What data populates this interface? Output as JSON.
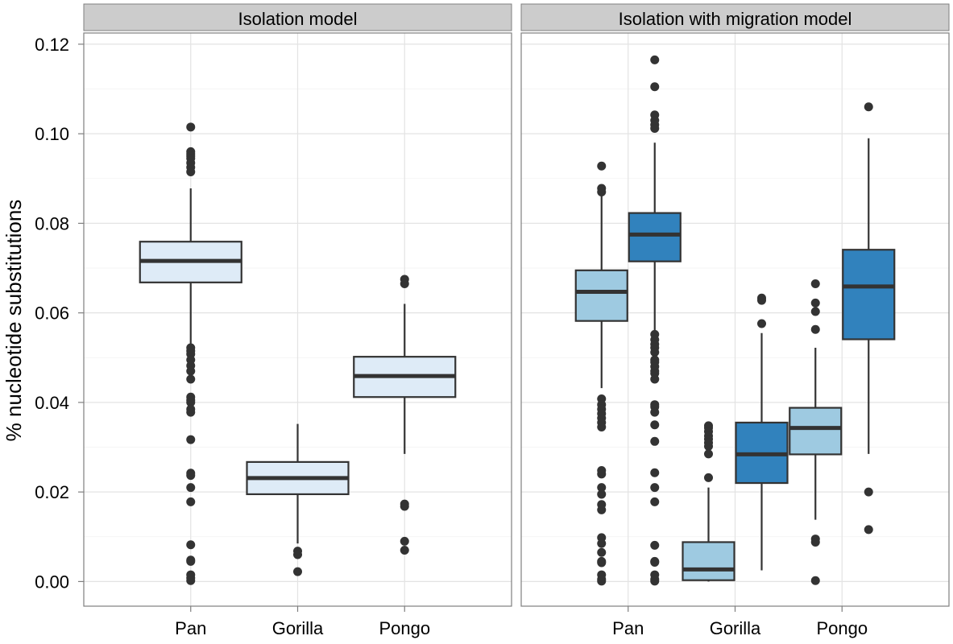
{
  "chart_data": {
    "type": "box",
    "ylabel": "% nucleotide substitutions",
    "ylim": [
      -0.0055,
      0.1225
    ],
    "yticks": [
      0.0,
      0.02,
      0.04,
      0.06,
      0.08,
      0.1,
      0.12
    ],
    "ytick_labels": [
      "0.00",
      "0.02",
      "0.04",
      "0.06",
      "0.08",
      "0.10",
      "0.12"
    ],
    "categories": [
      "Pan",
      "Gorilla",
      "Pongo"
    ],
    "grid": true,
    "colors": {
      "light": "#deebf7",
      "medium": "#9ecae1",
      "dark": "#3182bd",
      "outline": "#333333",
      "strip": "#cccccc"
    },
    "panels": [
      {
        "title": "Isolation model",
        "boxes": [
          {
            "category": "Pan",
            "slot": 0,
            "fill": "light",
            "q1": 0.0668,
            "median": 0.0716,
            "q3": 0.0759,
            "whisker_low": 0.053,
            "whisker_high": 0.0878,
            "outliers": [
              0.1015,
              0.096,
              0.0955,
              0.095,
              0.0945,
              0.0935,
              0.0925,
              0.0915,
              0.0522,
              0.0515,
              0.0508,
              0.0495,
              0.0482,
              0.047,
              0.0452,
              0.0412,
              0.0405,
              0.04,
              0.0385,
              0.0378,
              0.0317,
              0.0242,
              0.0237,
              0.021,
              0.0178,
              0.0082,
              0.0048,
              0.0045,
              0.0015,
              0.0008,
              0.0002
            ]
          },
          {
            "category": "Gorilla",
            "slot": 0,
            "fill": "light",
            "q1": 0.0195,
            "median": 0.0231,
            "q3": 0.0267,
            "whisker_low": 0.0085,
            "whisker_high": 0.0352,
            "outliers": [
              0.0068,
              0.006,
              0.0022
            ]
          },
          {
            "category": "Pongo",
            "slot": 0,
            "fill": "light",
            "q1": 0.0412,
            "median": 0.0459,
            "q3": 0.0502,
            "whisker_low": 0.0285,
            "whisker_high": 0.062,
            "outliers": [
              0.0675,
              0.0665,
              0.0173,
              0.0168,
              0.009,
              0.007
            ]
          }
        ]
      },
      {
        "title": "Isolation with migration model",
        "boxes": [
          {
            "category": "Pan",
            "slot": -1,
            "fill": "medium",
            "q1": 0.0582,
            "median": 0.0647,
            "q3": 0.0695,
            "whisker_low": 0.0432,
            "whisker_high": 0.0862,
            "outliers": [
              0.0928,
              0.0878,
              0.087,
              0.0408,
              0.0395,
              0.0385,
              0.0375,
              0.0365,
              0.0355,
              0.0345,
              0.0248,
              0.024,
              0.021,
              0.0195,
              0.0172,
              0.016,
              0.0098,
              0.0085,
              0.0065,
              0.0045,
              0.0042,
              0.0015,
              0.0005,
              0.0001
            ]
          },
          {
            "category": "Pan",
            "slot": 1,
            "fill": "dark",
            "q1": 0.0715,
            "median": 0.0775,
            "q3": 0.0823,
            "whisker_low": 0.056,
            "whisker_high": 0.098,
            "outliers": [
              0.1165,
              0.1105,
              0.1042,
              0.103,
              0.102,
              0.1012,
              0.0552,
              0.054,
              0.053,
              0.0522,
              0.0512,
              0.0495,
              0.049,
              0.048,
              0.047,
              0.0465,
              0.0452,
              0.0395,
              0.039,
              0.0378,
              0.035,
              0.0313,
              0.0243,
              0.021,
              0.0178,
              0.0081,
              0.0045,
              0.0043,
              0.0015,
              0.0005,
              0.0001
            ]
          },
          {
            "category": "Gorilla",
            "slot": -1,
            "fill": "medium",
            "q1": 0.0003,
            "median": 0.0027,
            "q3": 0.0088,
            "whisker_low": 0.0,
            "whisker_high": 0.021,
            "outliers": [
              0.0348,
              0.0343,
              0.0335,
              0.0325,
              0.0318,
              0.031,
              0.0302,
              0.0285,
              0.0232
            ]
          },
          {
            "category": "Gorilla",
            "slot": 1,
            "fill": "dark",
            "q1": 0.022,
            "median": 0.0284,
            "q3": 0.0355,
            "whisker_low": 0.0025,
            "whisker_high": 0.0555,
            "outliers": [
              0.0633,
              0.0628,
              0.0576
            ]
          },
          {
            "category": "Pongo",
            "slot": -1,
            "fill": "medium",
            "q1": 0.0284,
            "median": 0.0343,
            "q3": 0.0388,
            "whisker_low": 0.0138,
            "whisker_high": 0.0522,
            "outliers": [
              0.0665,
              0.0622,
              0.0603,
              0.0563,
              0.0095,
              0.0088,
              0.0002
            ]
          },
          {
            "category": "Pongo",
            "slot": 1,
            "fill": "dark",
            "q1": 0.0541,
            "median": 0.0659,
            "q3": 0.0741,
            "whisker_low": 0.0285,
            "whisker_high": 0.099,
            "outliers": [
              0.106,
              0.02,
              0.0116
            ]
          }
        ]
      }
    ]
  }
}
